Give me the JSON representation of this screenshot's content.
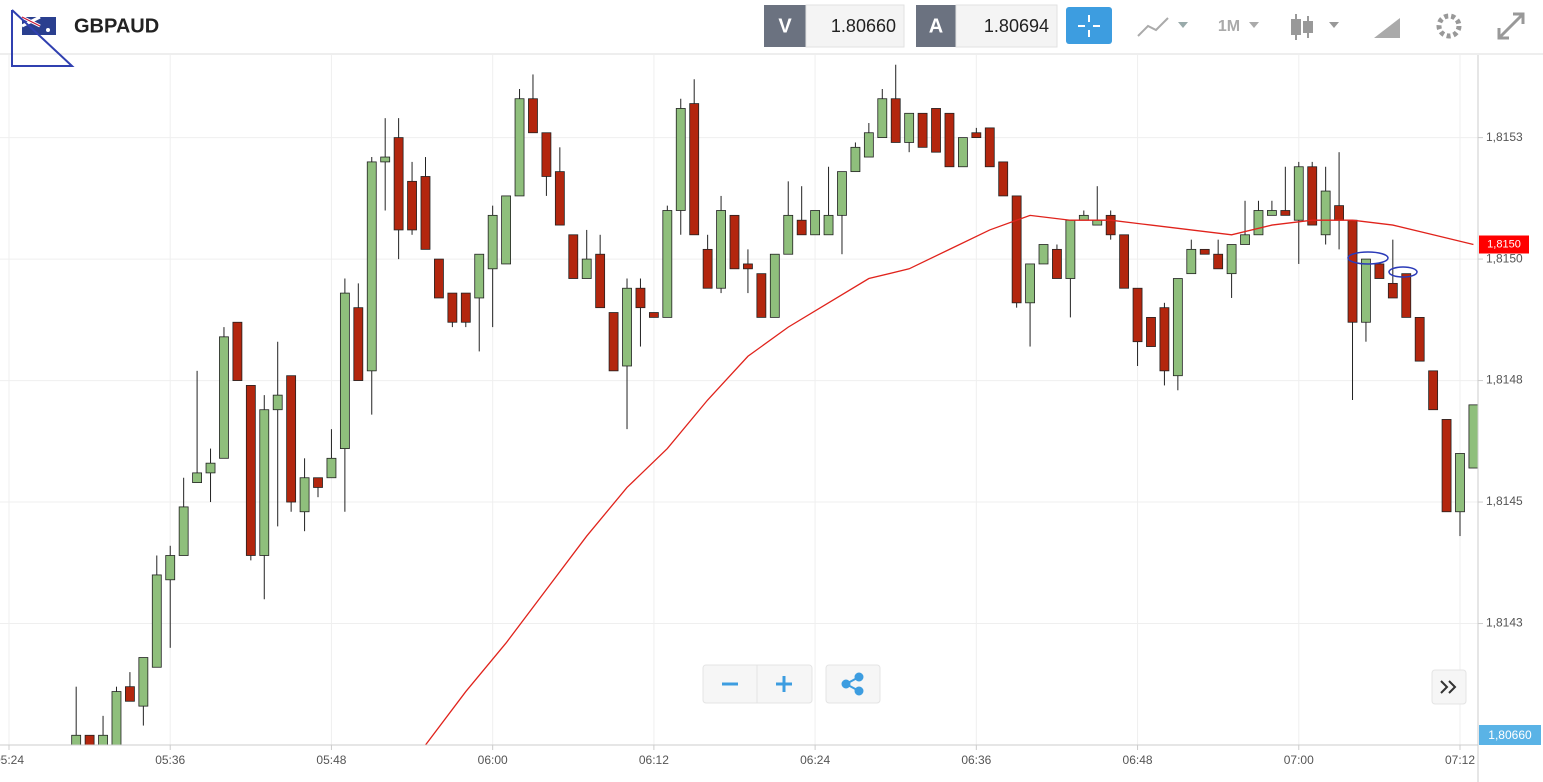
{
  "header": {
    "symbol": "GBPAUD",
    "bid_label": "V",
    "bid": "1.80660",
    "ask_label": "A",
    "ask": "1.80694",
    "timeframe": "1M"
  },
  "chart_data": {
    "type": "candlestick",
    "x": [
      329,
      330,
      331,
      332,
      333,
      334,
      335,
      336,
      337,
      338,
      339,
      340,
      341,
      342,
      343,
      344,
      345,
      346,
      347,
      348,
      349,
      350,
      351,
      352,
      353,
      354,
      355,
      356,
      357,
      358,
      359,
      360,
      361,
      362,
      363,
      364,
      365,
      366,
      367,
      368,
      369,
      370,
      371,
      372,
      373,
      374,
      375,
      376,
      377,
      378,
      379,
      380,
      381,
      382,
      383,
      384,
      385,
      386,
      387,
      388,
      389,
      390,
      391,
      392,
      393,
      394,
      395,
      396,
      397,
      398,
      399,
      400,
      401,
      402,
      403,
      404,
      405,
      406,
      407,
      408,
      409,
      410,
      411,
      412,
      413,
      414,
      415,
      416,
      417,
      418,
      419,
      420,
      421,
      422,
      423,
      424,
      425,
      426,
      427,
      428,
      429,
      430,
      431,
      432,
      433
    ],
    "open": [
      1.814,
      1.81402,
      1.814,
      1.814,
      1.81412,
      1.81408,
      1.81416,
      1.81434,
      1.81439,
      1.81454,
      1.81456,
      1.81459,
      1.81487,
      1.81474,
      1.81439,
      1.81469,
      1.81476,
      1.81448,
      1.81455,
      1.81455,
      1.81461,
      1.8149,
      1.81477,
      1.8152,
      1.81525,
      1.81516,
      1.81517,
      1.815,
      1.81493,
      1.81493,
      1.81492,
      1.81498,
      1.81499,
      1.81513,
      1.81533,
      1.81526,
      1.81518,
      1.81505,
      1.81496,
      1.81501,
      1.81489,
      1.81478,
      1.81494,
      1.81489,
      1.81488,
      1.8151,
      1.81532,
      1.81502,
      1.81494,
      1.81509,
      1.81499,
      1.81497,
      1.81488,
      1.81501,
      1.81508,
      1.81505,
      1.81505,
      1.81509,
      1.81518,
      1.81521,
      1.81525,
      1.81533,
      1.81524,
      1.8153,
      1.81531,
      1.8153,
      1.81519,
      1.81526,
      1.81527,
      1.8152,
      1.81513,
      1.81491,
      1.81499,
      1.81502,
      1.81496,
      1.81508,
      1.81507,
      1.81509,
      1.81505,
      1.81494,
      1.81488,
      1.8149,
      1.81476,
      1.81497,
      1.81502,
      1.81501,
      1.81497,
      1.81503,
      1.81505,
      1.81509,
      1.8151,
      1.81508,
      1.81519,
      1.81505,
      1.81511,
      1.81508,
      1.81487,
      1.81499,
      1.81495,
      1.81497,
      1.81488,
      1.81477,
      1.81467,
      1.81448,
      1.81457
    ],
    "high": [
      1.81412,
      1.81402,
      1.81406,
      1.81412,
      1.81415,
      1.81418,
      1.81439,
      1.81441,
      1.81455,
      1.81477,
      1.81461,
      1.81486,
      1.81487,
      1.81474,
      1.81472,
      1.81483,
      1.81476,
      1.81459,
      1.81455,
      1.81465,
      1.81496,
      1.81495,
      1.81521,
      1.81529,
      1.81529,
      1.8152,
      1.81521,
      1.815,
      1.81493,
      1.81493,
      1.81501,
      1.81511,
      1.81513,
      1.81535,
      1.81538,
      1.81526,
      1.81523,
      1.81505,
      1.81506,
      1.81505,
      1.81489,
      1.81496,
      1.81496,
      1.81489,
      1.81511,
      1.81533,
      1.81537,
      1.81505,
      1.81513,
      1.81509,
      1.81502,
      1.81497,
      1.81501,
      1.81516,
      1.81515,
      1.8151,
      1.81519,
      1.81518,
      1.81524,
      1.81528,
      1.81535,
      1.8154,
      1.8153,
      1.8153,
      1.81531,
      1.8153,
      1.81525,
      1.81527,
      1.81527,
      1.8152,
      1.81513,
      1.81499,
      1.81503,
      1.81503,
      1.81508,
      1.8151,
      1.81515,
      1.8151,
      1.81505,
      1.81494,
      1.81488,
      1.81491,
      1.81496,
      1.81504,
      1.81502,
      1.81504,
      1.81503,
      1.81512,
      1.81512,
      1.81512,
      1.81519,
      1.8152,
      1.8152,
      1.81519,
      1.81522,
      1.81508,
      1.815,
      1.81499,
      1.81504,
      1.81497,
      1.81488,
      1.81477,
      1.81467,
      1.8146,
      1.8147
    ],
    "low": [
      1.814,
      1.814,
      1.814,
      1.814,
      1.81409,
      1.81404,
      1.81416,
      1.8142,
      1.81439,
      1.81454,
      1.8145,
      1.81459,
      1.81475,
      1.81438,
      1.8143,
      1.81445,
      1.81448,
      1.81444,
      1.81451,
      1.81455,
      1.81448,
      1.81475,
      1.81468,
      1.8151,
      1.815,
      1.81505,
      1.81502,
      1.81492,
      1.81486,
      1.81486,
      1.81481,
      1.81486,
      1.81499,
      1.81513,
      1.81526,
      1.81513,
      1.81507,
      1.81496,
      1.81496,
      1.8149,
      1.81477,
      1.81465,
      1.81482,
      1.81488,
      1.81488,
      1.81505,
      1.81505,
      1.81494,
      1.81493,
      1.81498,
      1.81493,
      1.81488,
      1.81488,
      1.81501,
      1.81505,
      1.81505,
      1.81505,
      1.81501,
      1.81518,
      1.81521,
      1.81525,
      1.81524,
      1.81522,
      1.81523,
      1.81522,
      1.81519,
      1.81519,
      1.81525,
      1.81519,
      1.81513,
      1.8149,
      1.81482,
      1.81499,
      1.81496,
      1.81488,
      1.81508,
      1.81507,
      1.81504,
      1.81494,
      1.81478,
      1.81482,
      1.81474,
      1.81473,
      1.81497,
      1.81501,
      1.81498,
      1.81492,
      1.81503,
      1.81505,
      1.81509,
      1.81509,
      1.81499,
      1.81507,
      1.81503,
      1.81502,
      1.81471,
      1.81483,
      1.81496,
      1.81492,
      1.81488,
      1.81479,
      1.81469,
      1.81448,
      1.81443,
      1.81457
    ],
    "close": [
      1.81402,
      1.814,
      1.81402,
      1.81411,
      1.81409,
      1.81418,
      1.81435,
      1.81439,
      1.81449,
      1.81456,
      1.81458,
      1.81484,
      1.81475,
      1.81439,
      1.81469,
      1.81472,
      1.8145,
      1.81455,
      1.81453,
      1.81459,
      1.81493,
      1.81475,
      1.8152,
      1.81521,
      1.81506,
      1.81506,
      1.81502,
      1.81492,
      1.81487,
      1.81487,
      1.81501,
      1.81509,
      1.81513,
      1.81533,
      1.81526,
      1.81517,
      1.81507,
      1.81496,
      1.815,
      1.8149,
      1.81477,
      1.81494,
      1.8149,
      1.81488,
      1.8151,
      1.81531,
      1.81505,
      1.81494,
      1.8151,
      1.81498,
      1.81498,
      1.81488,
      1.81501,
      1.81509,
      1.81505,
      1.8151,
      1.81509,
      1.81518,
      1.81523,
      1.81526,
      1.81533,
      1.81524,
      1.8153,
      1.81523,
      1.81522,
      1.81519,
      1.81525,
      1.81525,
      1.81519,
      1.81513,
      1.81491,
      1.81499,
      1.81503,
      1.81496,
      1.81508,
      1.81509,
      1.81508,
      1.81505,
      1.81494,
      1.81483,
      1.81482,
      1.81477,
      1.81496,
      1.81502,
      1.81501,
      1.81498,
      1.81503,
      1.81505,
      1.8151,
      1.8151,
      1.81509,
      1.81519,
      1.81507,
      1.81514,
      1.81508,
      1.81487,
      1.815,
      1.81496,
      1.81492,
      1.81488,
      1.81479,
      1.81469,
      1.81448,
      1.8146,
      1.8147
    ],
    "up_color": "#8fbf7c",
    "down_color": "#b3260e",
    "moving_average": {
      "color": "#e0231c",
      "x": [
        355,
        358,
        361,
        364,
        367,
        370,
        373,
        376,
        379,
        382,
        385,
        388,
        391,
        394,
        397,
        400,
        403,
        406,
        409,
        412,
        415,
        418,
        421,
        424,
        427,
        430,
        433
      ],
      "values": [
        1.814,
        1.81411,
        1.81421,
        1.81432,
        1.81443,
        1.81453,
        1.81461,
        1.81471,
        1.8148,
        1.81486,
        1.81491,
        1.81496,
        1.81498,
        1.81502,
        1.81506,
        1.81509,
        1.81508,
        1.81508,
        1.81507,
        1.81506,
        1.81505,
        1.81507,
        1.81508,
        1.81508,
        1.81507,
        1.81505,
        1.81503
      ]
    },
    "ma_label": {
      "value": 1.81503,
      "label": "1,8150"
    },
    "price_marker": "1,80660",
    "xlim": [
      323.33,
      433.34
    ],
    "xticks": [
      {
        "value": 324,
        "label": "05:24"
      },
      {
        "value": 336,
        "label": "05:36"
      },
      {
        "value": 348,
        "label": "05:48"
      },
      {
        "value": 360,
        "label": "06:00"
      },
      {
        "value": 372,
        "label": "06:12"
      },
      {
        "value": 384,
        "label": "06:24"
      },
      {
        "value": 396,
        "label": "06:36"
      },
      {
        "value": 408,
        "label": "06:48"
      },
      {
        "value": 420,
        "label": "07:00"
      },
      {
        "value": 432,
        "label": "07:12"
      }
    ],
    "ylim": [
      1.814,
      1.81542
    ],
    "yticks": [
      {
        "value": 1.81425,
        "label": "1,8143"
      },
      {
        "value": 1.8145,
        "label": "1,8145"
      },
      {
        "value": 1.81475,
        "label": "1,8148"
      },
      {
        "value": 1.815,
        "label": "1,8150"
      },
      {
        "value": 1.81525,
        "label": "1,8153"
      }
    ],
    "grid": true
  }
}
